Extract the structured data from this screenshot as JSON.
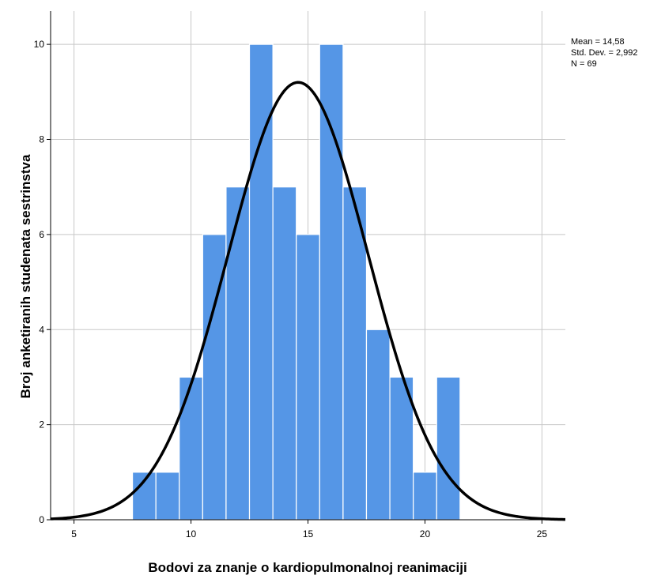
{
  "chart_data": {
    "type": "bar",
    "subtype": "histogram",
    "xlabel": "Bodovi za znanje o kardiopulmonalnoj reanimaciji",
    "ylabel": "Broj anketiranih studenata sestrinstva",
    "xlim": [
      4,
      26
    ],
    "ylim": [
      0,
      10.7
    ],
    "xticks": [
      5,
      10,
      15,
      20,
      25
    ],
    "yticks": [
      0,
      2,
      4,
      6,
      8,
      10
    ],
    "bin_width": 1,
    "bins": [
      {
        "start": 7.5,
        "end": 8.5,
        "count": 1
      },
      {
        "start": 8.5,
        "end": 9.5,
        "count": 1
      },
      {
        "start": 9.5,
        "end": 10.5,
        "count": 3
      },
      {
        "start": 10.5,
        "end": 11.5,
        "count": 6
      },
      {
        "start": 11.5,
        "end": 12.5,
        "count": 7
      },
      {
        "start": 12.5,
        "end": 13.5,
        "count": 10
      },
      {
        "start": 13.5,
        "end": 14.5,
        "count": 7
      },
      {
        "start": 14.5,
        "end": 15.5,
        "count": 6
      },
      {
        "start": 15.5,
        "end": 16.5,
        "count": 10
      },
      {
        "start": 16.5,
        "end": 17.5,
        "count": 7
      },
      {
        "start": 17.5,
        "end": 18.5,
        "count": 4
      },
      {
        "start": 18.5,
        "end": 19.5,
        "count": 3
      },
      {
        "start": 19.5,
        "end": 20.5,
        "count": 1
      },
      {
        "start": 20.5,
        "end": 21.5,
        "count": 3
      }
    ],
    "normal_curve": {
      "mean": 14.58,
      "sd": 2.992,
      "n": 69
    },
    "stats_text": [
      "Mean = 14,58",
      "Std. Dev. = 2,992",
      "N = 69"
    ],
    "grid": true,
    "colors": {
      "bar": "#5596e6",
      "bar_edge": "#ffffff",
      "curve": "#000000",
      "grid": "#c8c8c8"
    }
  }
}
